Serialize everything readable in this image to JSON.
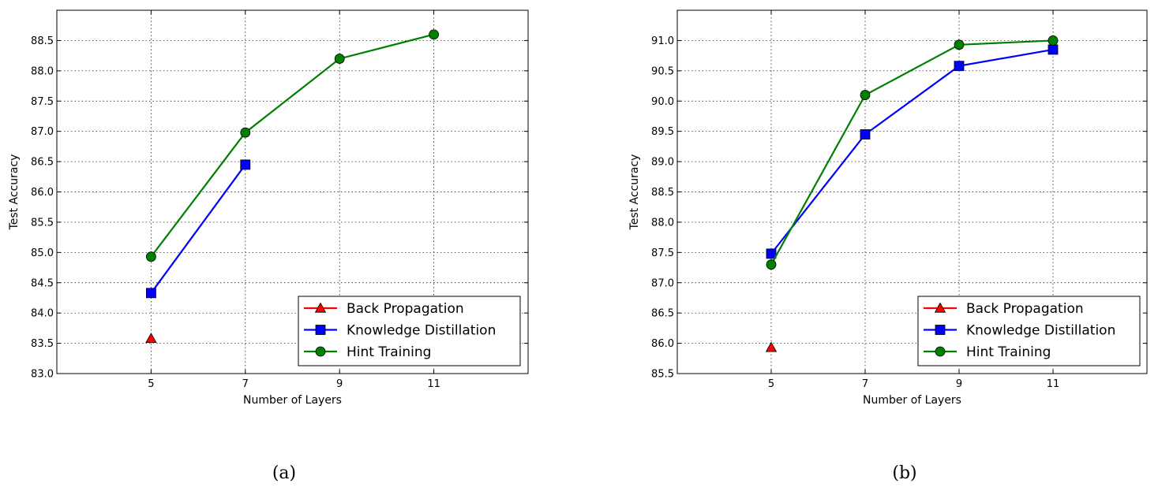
{
  "chart_data": [
    {
      "type": "line",
      "caption": "(a)",
      "xlabel": "Number of Layers",
      "ylabel": "Test Accuracy",
      "xlim": [
        3,
        13
      ],
      "ylim": [
        83.0,
        89.0
      ],
      "xticks": [
        5,
        7,
        9,
        11
      ],
      "yticks": [
        83.0,
        83.5,
        84.0,
        84.5,
        85.0,
        85.5,
        86.0,
        86.5,
        87.0,
        87.5,
        88.0,
        88.5
      ],
      "grid": true,
      "legend_position": "lower-right",
      "series": [
        {
          "name": "Back Propagation",
          "color": "#ff0000",
          "marker": "triangle",
          "x": [
            5
          ],
          "y": [
            83.58
          ]
        },
        {
          "name": "Knowledge Distillation",
          "color": "#0000ff",
          "marker": "square",
          "x": [
            5,
            7
          ],
          "y": [
            84.33,
            86.45
          ]
        },
        {
          "name": "Hint Training",
          "color": "#008000",
          "marker": "circle",
          "x": [
            5,
            7,
            9,
            11
          ],
          "y": [
            84.93,
            86.98,
            88.2,
            88.6
          ]
        }
      ]
    },
    {
      "type": "line",
      "caption": "(b)",
      "xlabel": "Number of Layers",
      "ylabel": "Test Accuracy",
      "xlim": [
        3,
        13
      ],
      "ylim": [
        85.5,
        91.5
      ],
      "xticks": [
        5,
        7,
        9,
        11
      ],
      "yticks": [
        85.5,
        86.0,
        86.5,
        87.0,
        87.5,
        88.0,
        88.5,
        89.0,
        89.5,
        90.0,
        90.5,
        91.0
      ],
      "grid": true,
      "legend_position": "lower-right",
      "series": [
        {
          "name": "Back Propagation",
          "color": "#ff0000",
          "marker": "triangle",
          "x": [
            5
          ],
          "y": [
            85.93
          ]
        },
        {
          "name": "Knowledge Distillation",
          "color": "#0000ff",
          "marker": "square",
          "x": [
            5,
            7,
            9,
            11
          ],
          "y": [
            87.48,
            89.45,
            90.58,
            90.85
          ]
        },
        {
          "name": "Hint Training",
          "color": "#008000",
          "marker": "circle",
          "x": [
            5,
            7,
            9,
            11
          ],
          "y": [
            87.3,
            90.1,
            90.93,
            91.0
          ]
        }
      ]
    }
  ]
}
